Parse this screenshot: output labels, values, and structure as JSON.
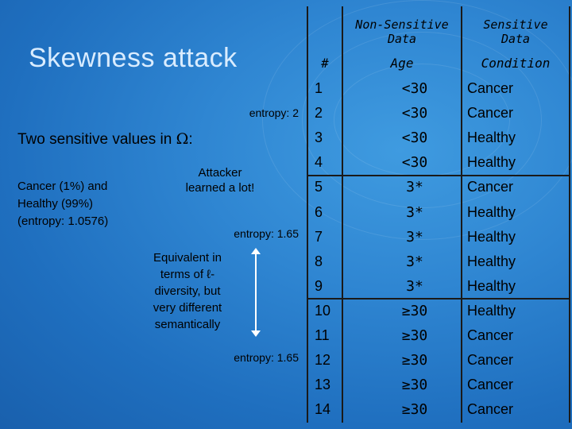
{
  "slide": {
    "title": "Skewness attack",
    "entropy_labels": [
      "entropy: 2",
      "entropy: 1.65",
      "entropy: 1.65"
    ],
    "two_values_prefix": "Two sensitive values in ",
    "two_values_symbol": "Ω",
    "two_values_suffix": ":",
    "cancer_note": [
      "Cancer (1%) and",
      "Healthy (99%)",
      "(entropy: 1.0576)"
    ],
    "attacker_note": [
      "Attacker",
      "learned a lot!"
    ],
    "equivalence_note": [
      "Equivalent in",
      "terms of ℓ-",
      "diversity, but",
      "very different",
      "semantically"
    ]
  },
  "table": {
    "group_headers": {
      "non_sensitive": [
        "Non-Sensitive",
        "Data"
      ],
      "sensitive": [
        "Sensitive",
        "Data"
      ]
    },
    "columns": [
      "#",
      "Age",
      "Condition"
    ],
    "rows": [
      {
        "num": "1",
        "age": "<30",
        "condition": "Cancer"
      },
      {
        "num": "2",
        "age": "<30",
        "condition": "Cancer"
      },
      {
        "num": "3",
        "age": "<30",
        "condition": "Healthy"
      },
      {
        "num": "4",
        "age": "<30",
        "condition": "Healthy"
      },
      {
        "num": "5",
        "age": "3*",
        "condition": "Cancer"
      },
      {
        "num": "6",
        "age": "3*",
        "condition": "Healthy"
      },
      {
        "num": "7",
        "age": "3*",
        "condition": "Healthy"
      },
      {
        "num": "8",
        "age": "3*",
        "condition": "Healthy"
      },
      {
        "num": "9",
        "age": "3*",
        "condition": "Healthy"
      },
      {
        "num": "10",
        "age": "≥30",
        "condition": "Healthy"
      },
      {
        "num": "11",
        "age": "≥30",
        "condition": "Cancer"
      },
      {
        "num": "12",
        "age": "≥30",
        "condition": "Cancer"
      },
      {
        "num": "13",
        "age": "≥30",
        "condition": "Cancer"
      },
      {
        "num": "14",
        "age": "≥30",
        "condition": "Cancer"
      }
    ]
  }
}
